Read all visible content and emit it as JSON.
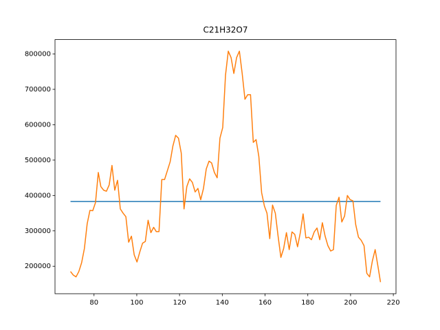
{
  "chart_data": {
    "type": "line",
    "title": "C21H32O7",
    "series": [
      {
        "color": "#1f77b4",
        "x": [
          69,
          214
        ],
        "values": [
          383000,
          383000
        ]
      },
      {
        "color": "#ff7f0e",
        "x": [
          69.0,
          70.3,
          71.6,
          72.9,
          74.2,
          75.5,
          76.8,
          78.1,
          79.4,
          80.7,
          82.0,
          83.2,
          84.5,
          85.8,
          87.1,
          88.4,
          89.7,
          91.0,
          92.3,
          93.6,
          94.9,
          96.2,
          97.5,
          98.8,
          100.1,
          101.4,
          102.7,
          104.0,
          105.3,
          106.6,
          107.9,
          109.1,
          110.4,
          111.7,
          113.0,
          114.3,
          115.6,
          116.9,
          118.2,
          119.5,
          120.8,
          122.1,
          123.4,
          124.7,
          126.0,
          127.3,
          128.6,
          129.9,
          131.2,
          132.5,
          133.8,
          135.0,
          136.3,
          137.6,
          138.9,
          140.2,
          141.5,
          142.8,
          144.1,
          145.4,
          146.7,
          148.0,
          149.3,
          150.6,
          151.9,
          153.2,
          154.5,
          155.8,
          157.1,
          158.4,
          159.7,
          160.9,
          162.2,
          163.5,
          164.8,
          166.1,
          167.4,
          168.7,
          170.0,
          171.3,
          172.6,
          173.9,
          175.2,
          176.5,
          177.8,
          179.1,
          180.4,
          181.7,
          183.0,
          184.3,
          185.6,
          186.8,
          188.1,
          189.4,
          190.7,
          192.0,
          193.3,
          194.6,
          195.9,
          197.2,
          198.5,
          199.8,
          201.1,
          202.4,
          203.7,
          205.0,
          206.3,
          207.6,
          208.9,
          210.2,
          211.5,
          212.8,
          214.0
        ],
        "values": [
          185000,
          175000,
          170000,
          185000,
          210000,
          250000,
          320000,
          358000,
          357000,
          380000,
          465000,
          425000,
          415000,
          412000,
          430000,
          485000,
          415000,
          443000,
          362000,
          350000,
          340000,
          268000,
          285000,
          232000,
          212000,
          240000,
          265000,
          270000,
          330000,
          295000,
          310000,
          298000,
          298000,
          445000,
          445000,
          470000,
          495000,
          540000,
          570000,
          562000,
          520000,
          362000,
          425000,
          447000,
          437000,
          410000,
          420000,
          388000,
          420000,
          475000,
          497000,
          492000,
          465000,
          450000,
          562000,
          592000,
          740000,
          808000,
          790000,
          745000,
          790000,
          808000,
          745000,
          672000,
          685000,
          685000,
          550000,
          558000,
          510000,
          408000,
          370000,
          350000,
          278000,
          373000,
          350000,
          285000,
          225000,
          250000,
          295000,
          247000,
          297000,
          290000,
          255000,
          295000,
          348000,
          280000,
          282000,
          275000,
          297000,
          308000,
          275000,
          323000,
          285000,
          258000,
          243000,
          247000,
          372000,
          395000,
          325000,
          342000,
          400000,
          388000,
          385000,
          318000,
          282000,
          273000,
          258000,
          180000,
          170000,
          215000,
          247000,
          200000,
          155000
        ]
      }
    ],
    "xlim": [
      61.75,
      221.25
    ],
    "xticks": [
      80,
      100,
      120,
      140,
      160,
      180,
      200,
      220
    ],
    "ylim": [
      122350,
      840650
    ],
    "yticks": [
      200000,
      300000,
      400000,
      500000,
      600000,
      700000,
      800000
    ]
  }
}
